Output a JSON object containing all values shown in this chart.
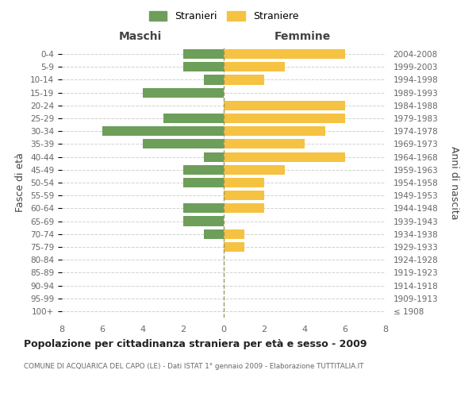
{
  "age_groups": [
    "100+",
    "95-99",
    "90-94",
    "85-89",
    "80-84",
    "75-79",
    "70-74",
    "65-69",
    "60-64",
    "55-59",
    "50-54",
    "45-49",
    "40-44",
    "35-39",
    "30-34",
    "25-29",
    "20-24",
    "15-19",
    "10-14",
    "5-9",
    "0-4"
  ],
  "birth_years": [
    "≤ 1908",
    "1909-1913",
    "1914-1918",
    "1919-1923",
    "1924-1928",
    "1929-1933",
    "1934-1938",
    "1939-1943",
    "1944-1948",
    "1949-1953",
    "1954-1958",
    "1959-1963",
    "1964-1968",
    "1969-1973",
    "1974-1978",
    "1979-1983",
    "1984-1988",
    "1989-1993",
    "1994-1998",
    "1999-2003",
    "2004-2008"
  ],
  "maschi": [
    0,
    0,
    0,
    0,
    0,
    0,
    1,
    2,
    2,
    0,
    2,
    2,
    1,
    4,
    6,
    3,
    0,
    4,
    1,
    2,
    2
  ],
  "femmine": [
    0,
    0,
    0,
    0,
    0,
    1,
    1,
    0,
    2,
    2,
    2,
    3,
    6,
    4,
    5,
    6,
    6,
    0,
    2,
    3,
    6
  ],
  "color_maschi": "#6d9e5a",
  "color_femmine": "#f5c242",
  "title": "Popolazione per cittadinanza straniera per età e sesso - 2009",
  "subtitle": "COMUNE DI ACQUARICA DEL CAPO (LE) - Dati ISTAT 1° gennaio 2009 - Elaborazione TUTTITALIA.IT",
  "xlabel_left": "Maschi",
  "xlabel_right": "Femmine",
  "ylabel_left": "Fasce di età",
  "ylabel_right": "Anni di nascita",
  "xlim": 8,
  "legend_stranieri": "Stranieri",
  "legend_straniere": "Straniere",
  "bg_color": "#ffffff",
  "grid_color": "#cccccc",
  "text_color": "#666666",
  "axis_label_color": "#444444"
}
